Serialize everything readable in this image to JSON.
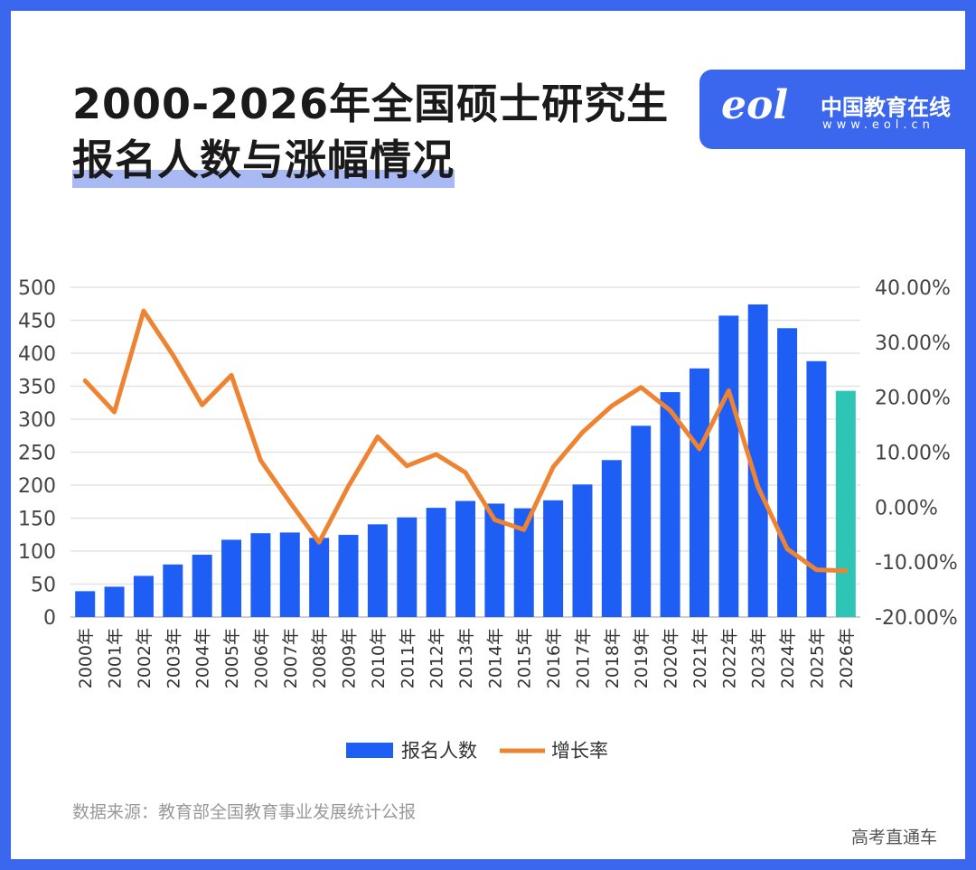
{
  "title_line1": "2000-2026年全国硕士研究生",
  "title_line2": "报名人数与涨幅情况",
  "logo": {
    "text": "eol",
    "name": "中国教育在线",
    "url": "www.eol.cn"
  },
  "source": "数据来源：教育部全国教育事业发展统计公报",
  "corner_text": "高考直通车",
  "colors": {
    "bar": "#1f5ef5",
    "bar_highlight": "#2ec4b6",
    "line": "#ee8431",
    "frame": "#3b66ee"
  },
  "chart_data": {
    "type": "bar+line",
    "categories": [
      "2000年",
      "2001年",
      "2002年",
      "2003年",
      "2004年",
      "2005年",
      "2006年",
      "2007年",
      "2008年",
      "2009年",
      "2010年",
      "2011年",
      "2012年",
      "2013年",
      "2014年",
      "2015年",
      "2016年",
      "2017年",
      "2018年",
      "2019年",
      "2020年",
      "2021年",
      "2022年",
      "2023年",
      "2024年",
      "2025年",
      "2026年"
    ],
    "series": [
      {
        "name": "报名人数",
        "type": "bar",
        "axis": "left",
        "values": [
          39.2,
          46,
          62.4,
          79.7,
          94.5,
          117.2,
          127.1,
          128.2,
          120,
          124.6,
          140.6,
          151.1,
          165.6,
          176,
          172,
          164.9,
          177,
          201,
          238,
          290,
          341,
          377,
          457,
          474,
          438,
          388,
          343
        ]
      },
      {
        "name": "增长率",
        "type": "line",
        "axis": "right",
        "values": [
          23.0,
          17.3,
          35.7,
          27.7,
          18.6,
          24.0,
          8.5,
          0.9,
          -6.4,
          3.8,
          12.8,
          7.5,
          9.6,
          6.3,
          -2.3,
          -4.1,
          7.3,
          13.6,
          18.4,
          21.8,
          17.6,
          10.6,
          21.2,
          3.7,
          -7.6,
          -11.4,
          -11.6
        ]
      }
    ],
    "left_axis": {
      "ylim": [
        0,
        500
      ],
      "ticks": [
        "0",
        "50",
        "100",
        "150",
        "200",
        "250",
        "300",
        "350",
        "400",
        "450",
        "500"
      ]
    },
    "right_axis": {
      "ylim": [
        -20,
        40
      ],
      "ticks": [
        "-20.00%",
        "-10.00%",
        "0.00%",
        "10.00%",
        "20.00%",
        "30.00%",
        "40.00%"
      ]
    },
    "grid": true,
    "legend": "bottom",
    "highlight_last_bar": true
  }
}
